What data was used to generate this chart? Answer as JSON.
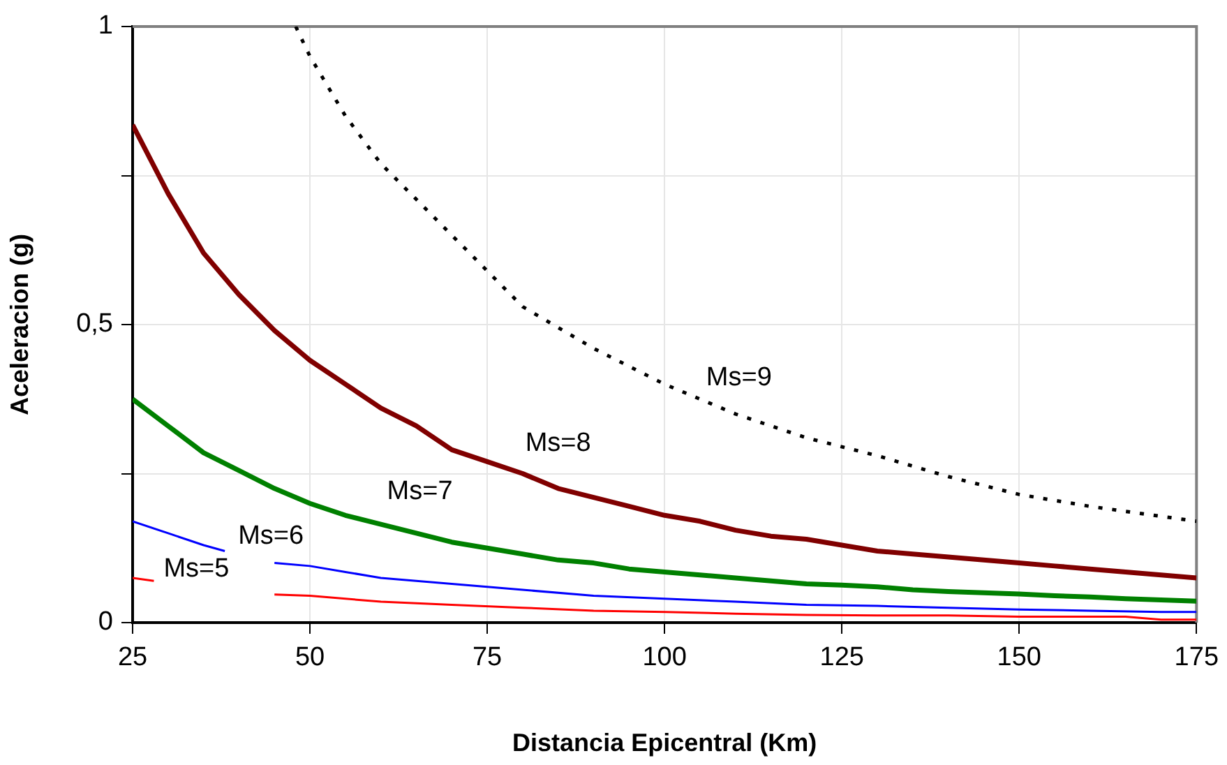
{
  "chart_data": {
    "type": "line",
    "xlabel": "Distancia Epicentral (Km)",
    "ylabel": "Aceleracion (g)",
    "xlim": [
      25,
      175
    ],
    "xticks": [
      25,
      50,
      75,
      100,
      125,
      150,
      175
    ],
    "ylim": [
      0,
      1
    ],
    "yticks": [
      0,
      {
        "value": 0.25,
        "label": null
      },
      {
        "value": 0.5,
        "label": "0,5"
      },
      {
        "value": 0.75,
        "label": null
      },
      1
    ],
    "grid": true,
    "legend": false,
    "marker": "none",
    "series": [
      {
        "name": "Ms=5",
        "color": "#ff0000",
        "line_style": "solid",
        "x": [
          25,
          28,
          36,
          45,
          50,
          60,
          70,
          80,
          90,
          100,
          110,
          120,
          130,
          140,
          150,
          160,
          165,
          170,
          175
        ],
        "values": [
          0.075,
          0.07,
          null,
          0.047,
          0.045,
          0.035,
          0.03,
          0.025,
          0.02,
          0.018,
          0.015,
          0.013,
          0.012,
          0.012,
          0.01,
          0.01,
          0.01,
          0.005,
          0.005
        ]
      },
      {
        "name": "Ms=6",
        "color": "#0000ff",
        "line_style": "solid",
        "x": [
          25,
          30,
          35,
          38,
          41,
          45,
          50,
          55,
          60,
          70,
          80,
          90,
          100,
          110,
          120,
          130,
          140,
          150,
          160,
          170,
          175
        ],
        "values": [
          0.17,
          0.15,
          0.13,
          0.12,
          null,
          0.1,
          0.095,
          0.085,
          0.075,
          0.065,
          0.055,
          0.045,
          0.04,
          0.035,
          0.03,
          0.028,
          0.025,
          0.022,
          0.02,
          0.018,
          0.018
        ]
      },
      {
        "name": "Ms=7",
        "color": "#008000",
        "line_style": "solid",
        "x": [
          25,
          30,
          35,
          40,
          45,
          50,
          55,
          60,
          65,
          70,
          75,
          80,
          85,
          90,
          95,
          100,
          105,
          110,
          115,
          120,
          125,
          130,
          135,
          140,
          145,
          150,
          155,
          160,
          165,
          170,
          175
        ],
        "values": [
          0.375,
          0.33,
          0.285,
          0.255,
          0.225,
          0.2,
          0.18,
          0.165,
          0.15,
          0.135,
          0.125,
          0.115,
          0.105,
          0.1,
          0.09,
          0.085,
          0.08,
          0.075,
          0.07,
          0.065,
          0.063,
          0.06,
          0.055,
          0.052,
          0.05,
          0.048,
          0.045,
          0.043,
          0.04,
          0.038,
          0.036
        ]
      },
      {
        "name": "Ms=8",
        "color": "#800000",
        "line_style": "solid",
        "x": [
          25,
          30,
          35,
          40,
          45,
          50,
          55,
          60,
          65,
          70,
          75,
          80,
          85,
          90,
          95,
          100,
          105,
          110,
          115,
          120,
          125,
          130,
          135,
          140,
          145,
          150,
          155,
          160,
          165,
          170,
          175
        ],
        "values": [
          0.835,
          0.72,
          0.62,
          0.55,
          0.49,
          0.44,
          0.4,
          0.36,
          0.33,
          0.29,
          0.27,
          0.25,
          0.225,
          0.21,
          0.195,
          0.18,
          0.17,
          0.155,
          0.145,
          0.14,
          0.13,
          0.12,
          0.115,
          0.11,
          0.105,
          0.1,
          0.095,
          0.09,
          0.085,
          0.08,
          0.075
        ]
      },
      {
        "name": "Ms=9",
        "color": "#000000",
        "line_style": "dotted",
        "x": [
          48,
          50,
          55,
          60,
          70,
          80,
          90,
          100,
          110,
          120,
          130,
          140,
          150,
          160,
          175
        ],
        "values": [
          1,
          0.95,
          0.85,
          0.77,
          0.65,
          0.53,
          0.46,
          0.4,
          0.35,
          0.31,
          0.28,
          0.245,
          0.215,
          0.195,
          0.17
        ]
      }
    ]
  }
}
